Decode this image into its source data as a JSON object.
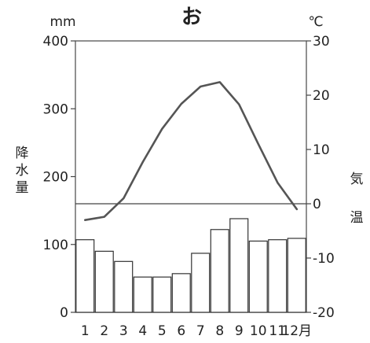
{
  "chart_data": {
    "type": "bar+line",
    "title": "お",
    "categories": [
      "1",
      "2",
      "3",
      "4",
      "5",
      "6",
      "7",
      "8",
      "9",
      "10",
      "11",
      "12"
    ],
    "month_suffix": "月",
    "precipitation": {
      "unit": "mm",
      "label_chars": [
        "降",
        "水",
        "量"
      ],
      "values": [
        107,
        90,
        75,
        52,
        52,
        57,
        87,
        122,
        138,
        105,
        107,
        109
      ],
      "ylim": [
        0,
        400
      ],
      "ticks": [
        "0",
        "100",
        "200",
        "300",
        "400"
      ]
    },
    "temperature": {
      "unit": "℃",
      "label_chars": [
        "気",
        "温"
      ],
      "values": [
        -3.0,
        -2.4,
        1.0,
        7.7,
        13.8,
        18.4,
        21.6,
        22.4,
        18.3,
        11.0,
        3.9,
        -1.0
      ],
      "ylim": [
        -20,
        30
      ],
      "ticks": [
        "-20",
        "-10",
        "0",
        "10",
        "20",
        "30"
      ]
    },
    "grid": false,
    "colors": {
      "bars": "#ffffff",
      "bar_edge": "#333333",
      "line": "#555555"
    }
  }
}
